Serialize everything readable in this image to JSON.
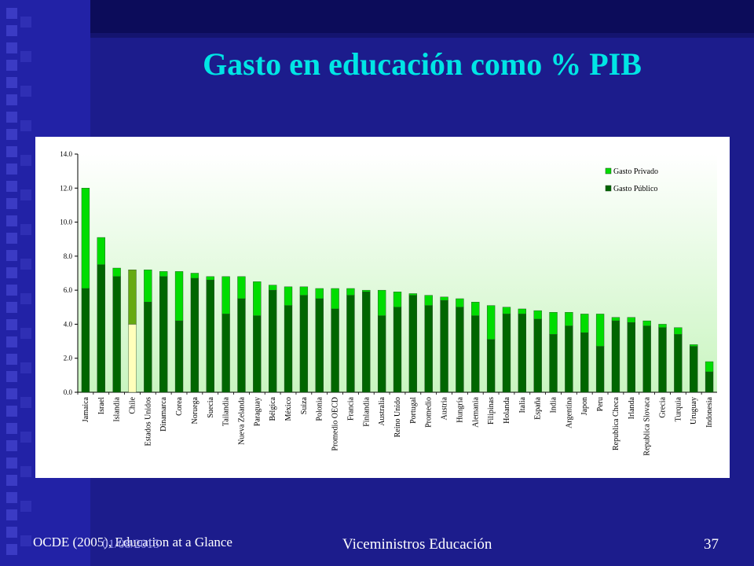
{
  "slide": {
    "title": "Gasto en educación como % PIB",
    "footer_source": "OCDE (2005), Education at a Glance",
    "footer_date": "01/08/2015",
    "footer_center": "Viceministros Educación",
    "page_number": "37"
  },
  "colors": {
    "privado": "#00dd00",
    "publico": "#006600",
    "chile_privado": "#66aa11",
    "chile_publico": "#ffffbb",
    "plot_bg_top": "#ffffff",
    "plot_bg_bottom": "#c9f5c0"
  },
  "chart_data": {
    "type": "bar",
    "stacked": true,
    "categories": [
      "Jamaica",
      "Israel",
      "Islandia",
      "Chile",
      "Estados Unidos",
      "Dinamarca",
      "Corea",
      "Noruega",
      "Suecia",
      "Tailandia",
      "Nueva Zelanda",
      "Paraguay",
      "Bélgica",
      "México",
      "Suiza",
      "Polonia",
      "Promedio OECD",
      "Francia",
      "Finlandia",
      "Australia",
      "Reino Unido",
      "Portugal",
      "Promedio",
      "Austria",
      "Hungría",
      "Alemania",
      "Filipinas",
      "Holanda",
      "Italia",
      "España",
      "India",
      "Argentina",
      "Japon",
      "Peru",
      "Republica Checa",
      "Irlanda",
      "Republica Slovaca",
      "Grecia",
      "Turquia",
      "Uruguay",
      "Indonesia"
    ],
    "series": [
      {
        "name": "Gasto Público",
        "values": [
          6.1,
          7.5,
          6.8,
          4.0,
          5.3,
          6.8,
          4.2,
          6.7,
          6.6,
          4.6,
          5.5,
          4.5,
          6.0,
          5.1,
          5.7,
          5.5,
          4.9,
          5.7,
          5.9,
          4.5,
          5.0,
          5.7,
          5.1,
          5.4,
          5.0,
          4.5,
          3.1,
          4.6,
          4.6,
          4.3,
          3.4,
          3.9,
          3.5,
          2.7,
          4.2,
          4.1,
          3.9,
          3.8,
          3.4,
          2.7,
          1.2
        ]
      },
      {
        "name": "Gasto Privado",
        "values": [
          5.9,
          1.6,
          0.5,
          3.2,
          1.9,
          0.3,
          2.9,
          0.3,
          0.2,
          2.2,
          1.3,
          2.0,
          0.3,
          1.1,
          0.5,
          0.6,
          1.2,
          0.4,
          0.1,
          1.5,
          0.9,
          0.1,
          0.6,
          0.2,
          0.5,
          0.8,
          2.0,
          0.4,
          0.3,
          0.5,
          1.3,
          0.8,
          1.1,
          1.9,
          0.2,
          0.3,
          0.3,
          0.2,
          0.4,
          0.1,
          0.6
        ]
      }
    ],
    "ylim": [
      0,
      14
    ],
    "yticks": [
      "0.0",
      "2.0",
      "4.0",
      "6.0",
      "8.0",
      "10.0",
      "12.0",
      "14.0"
    ],
    "legend": [
      {
        "label": "Gasto Privado",
        "color": "#00dd00"
      },
      {
        "label": "Gasto Público",
        "color": "#006600"
      }
    ],
    "legend_position": "top-right",
    "grid": false
  }
}
